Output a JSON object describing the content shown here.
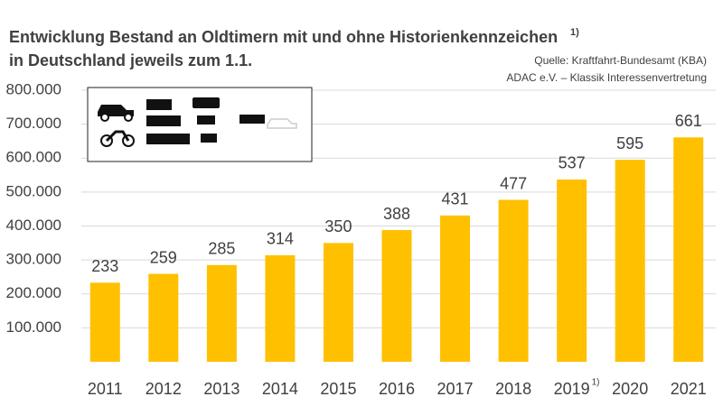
{
  "chart_data": {
    "type": "bar",
    "title_lines": [
      "Entwicklung Bestand an Oldtimern mit und ohne Historienkennzeichen",
      "in Deutschland jeweils zum 1.1."
    ],
    "title_footnote": "1)",
    "source": [
      "Quelle: Kraftfahrt-Bundesamt (KBA)",
      "ADAC e.V. – Klassik Interessenvertretung"
    ],
    "categories": [
      "2011",
      "2012",
      "2013",
      "2014",
      "2015",
      "2016",
      "2017",
      "2018",
      "2019",
      "2020",
      "2021"
    ],
    "category_footnotes": [
      null,
      null,
      null,
      null,
      null,
      null,
      null,
      null,
      "1)",
      null,
      null
    ],
    "values": [
      233000,
      259000,
      285000,
      314000,
      350000,
      388000,
      431000,
      477000,
      537000,
      595000,
      661000
    ],
    "value_labels": [
      "233",
      "259",
      "285",
      "314",
      "350",
      "388",
      "431",
      "477",
      "537",
      "595",
      "661"
    ],
    "color": "#ffc000",
    "ylim": [
      0,
      800000
    ],
    "yticks": [
      {
        "value": 100000,
        "label": "100.000"
      },
      {
        "value": 200000,
        "label": "200.000"
      },
      {
        "value": 300000,
        "label": "300.000"
      },
      {
        "value": 400000,
        "label": "400.000"
      },
      {
        "value": 500000,
        "label": "500.000"
      },
      {
        "value": 600000,
        "label": "600.000"
      },
      {
        "value": 700000,
        "label": "700.000"
      },
      {
        "value": 800000,
        "label": "800.000"
      }
    ],
    "grid": true
  }
}
